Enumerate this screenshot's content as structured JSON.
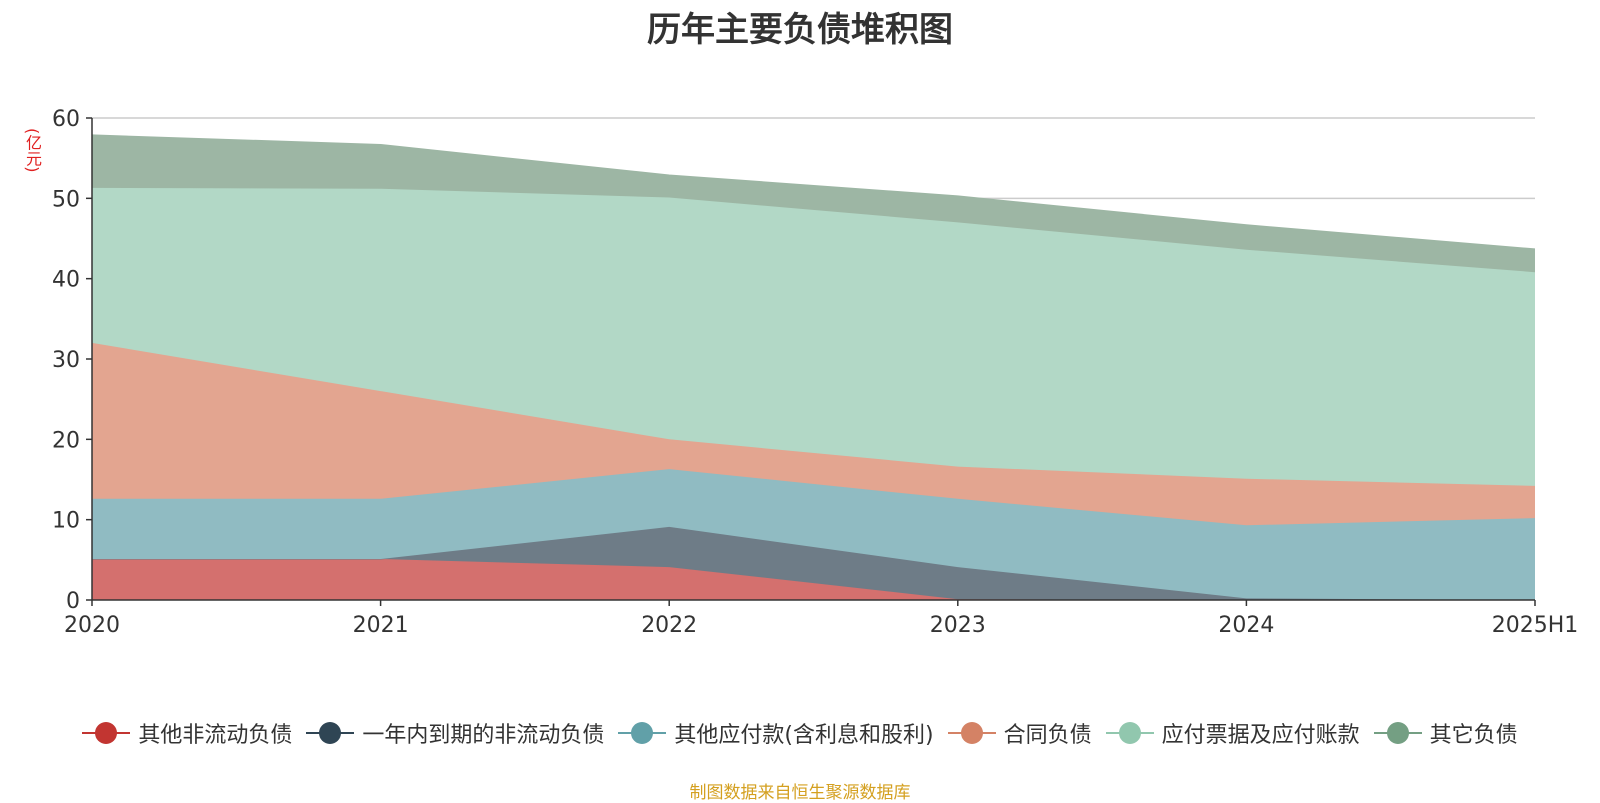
{
  "chart_data": {
    "type": "area",
    "stacked": true,
    "title": "历年主要负债堆积图",
    "ylabel": "(亿元)",
    "xlabel": "",
    "categories": [
      "2020",
      "2021",
      "2022",
      "2023",
      "2024",
      "2025H1"
    ],
    "ylim": [
      0,
      60
    ],
    "yticks": [
      0,
      10,
      20,
      30,
      40,
      50,
      60
    ],
    "grid": true,
    "legend_position": "bottom",
    "series": [
      {
        "name": "其他非流动负债",
        "color": "#c23531",
        "area_color": "#d4706e",
        "values": [
          5.1,
          5.1,
          4.1,
          0.1,
          0.0,
          0.0
        ]
      },
      {
        "name": "一年内到期的非流动负债",
        "color": "#2f4554",
        "area_color": "#6e7c87",
        "values": [
          0.0,
          0.0,
          5.0,
          4.0,
          0.2,
          0.0
        ]
      },
      {
        "name": "其他应付款(含利息和股利)",
        "color": "#61a0a8",
        "area_color": "#90bbc2",
        "values": [
          7.5,
          7.5,
          7.2,
          8.5,
          9.1,
          10.2
        ]
      },
      {
        "name": "合同负债",
        "color": "#d48265",
        "area_color": "#e3a590",
        "values": [
          19.4,
          13.4,
          3.7,
          4.0,
          5.8,
          4.0
        ]
      },
      {
        "name": "应付票据及应付账款",
        "color": "#91c7ae",
        "area_color": "#b2d8c6",
        "values": [
          19.3,
          25.2,
          30.1,
          30.4,
          28.5,
          26.6
        ]
      },
      {
        "name": "其它负债",
        "color": "#749f83",
        "area_color": "#9db6a4",
        "values": [
          6.6,
          5.5,
          2.8,
          3.3,
          3.1,
          2.9
        ]
      }
    ]
  },
  "source_note": "制图数据来自恒生聚源数据库"
}
